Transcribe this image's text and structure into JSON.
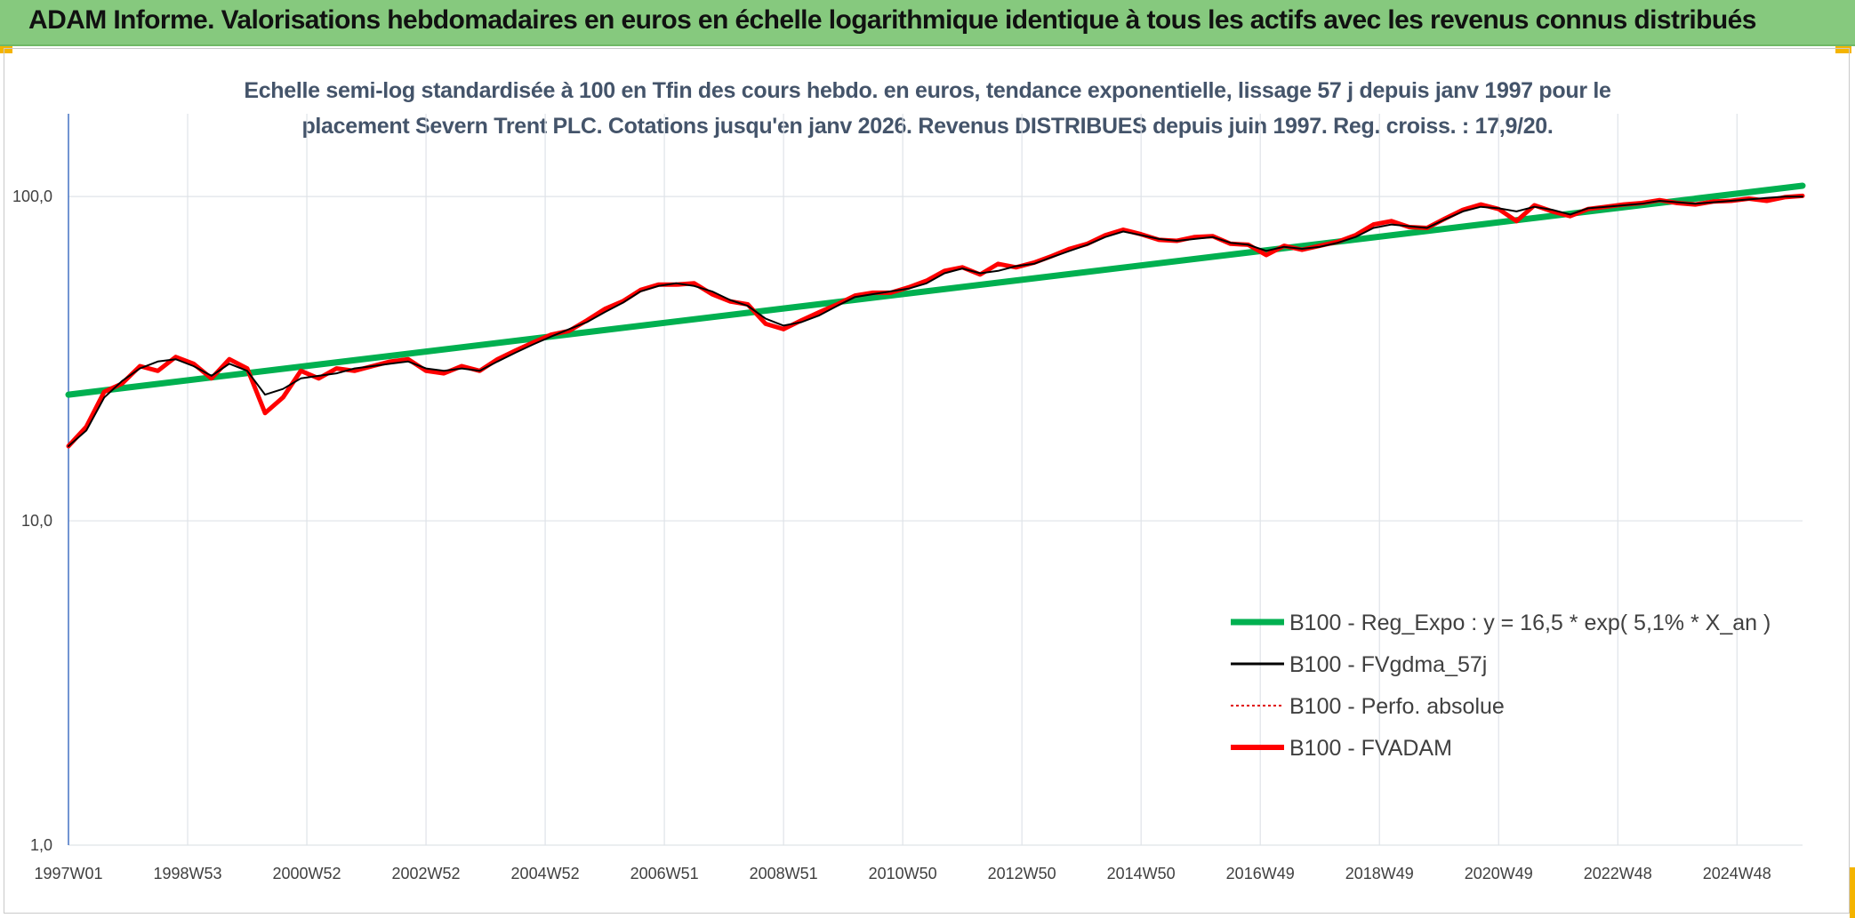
{
  "header": {
    "title": "ADAM Informe. Valorisations hebdomadaires en euros en échelle logarithmique identique à tous les actifs avec les revenus connus distribués"
  },
  "colors": {
    "header_bg": "#86c97e",
    "trend": "#00b050",
    "fvgdma": "#000000",
    "perfo": "#e00000",
    "fvadam": "#ff0000",
    "title_text": "#44546a"
  },
  "chart_data": {
    "type": "line",
    "title_line1": "Echelle semi-log standardisée à 100 en Tfin des cours hebdo. en euros, tendance exponentielle, lissage 57 j depuis janv 1997 pour le",
    "title_line2": "placement Severn Trent PLC. Cotations jusqu'en janv 2026. Revenus DISTRIBUES depuis juin 1997. Reg. croiss. : 17,9/20.",
    "y_scale": "log",
    "ylim": [
      1,
      180
    ],
    "xlim": [
      1997.0,
      2026.1
    ],
    "grid": true,
    "y_ticks": [
      {
        "value": 1,
        "label": "1,0"
      },
      {
        "value": 10,
        "label": "10,0"
      },
      {
        "value": 100,
        "label": "100,0"
      }
    ],
    "x_ticks": [
      {
        "value": 1997.0,
        "label": "1997W01"
      },
      {
        "value": 1999.0,
        "label": "1998W53"
      },
      {
        "value": 2001.0,
        "label": "2000W52"
      },
      {
        "value": 2003.0,
        "label": "2002W52"
      },
      {
        "value": 2005.0,
        "label": "2004W52"
      },
      {
        "value": 2007.0,
        "label": "2006W51"
      },
      {
        "value": 2009.0,
        "label": "2008W51"
      },
      {
        "value": 2011.0,
        "label": "2010W50"
      },
      {
        "value": 2013.0,
        "label": "2012W50"
      },
      {
        "value": 2015.0,
        "label": "2014W50"
      },
      {
        "value": 2017.0,
        "label": "2016W49"
      },
      {
        "value": 2019.0,
        "label": "2018W49"
      },
      {
        "value": 2021.0,
        "label": "2020W49"
      },
      {
        "value": 2023.0,
        "label": "2022W48"
      },
      {
        "value": 2025.0,
        "label": "2024W48"
      }
    ],
    "legend_position": "bottom-right",
    "series": [
      {
        "name": "B100 - Reg_Expo : y = 16,5 * exp( 5,1% *  X_an )",
        "key": "trend",
        "x": [
          1997.0,
          2026.1
        ],
        "values": [
          24.5,
          108.0
        ]
      },
      {
        "name": "B100 - FVgdma_57j",
        "key": "fvgdma",
        "x": [
          1997.0,
          1997.3,
          1997.6,
          1997.9,
          1998.2,
          1998.5,
          1998.8,
          1999.1,
          1999.4,
          1999.7,
          2000.0,
          2000.3,
          2000.6,
          2000.9,
          2001.2,
          2001.5,
          2001.8,
          2002.1,
          2002.4,
          2002.7,
          2003.0,
          2003.3,
          2003.6,
          2003.9,
          2004.2,
          2004.5,
          2004.8,
          2005.1,
          2005.4,
          2005.7,
          2006.0,
          2006.3,
          2006.6,
          2006.9,
          2007.2,
          2007.5,
          2007.8,
          2008.1,
          2008.4,
          2008.7,
          2009.0,
          2009.3,
          2009.6,
          2009.9,
          2010.2,
          2010.5,
          2010.8,
          2011.1,
          2011.4,
          2011.7,
          2012.0,
          2012.3,
          2012.6,
          2012.9,
          2013.2,
          2013.5,
          2013.8,
          2014.1,
          2014.4,
          2014.7,
          2015.0,
          2015.3,
          2015.6,
          2015.9,
          2016.2,
          2016.5,
          2016.8,
          2017.1,
          2017.4,
          2017.7,
          2018.0,
          2018.3,
          2018.6,
          2018.9,
          2019.2,
          2019.5,
          2019.8,
          2020.1,
          2020.4,
          2020.7,
          2021.0,
          2021.3,
          2021.6,
          2021.9,
          2022.2,
          2022.5,
          2022.8,
          2023.1,
          2023.4,
          2023.7,
          2024.0,
          2024.3,
          2024.6,
          2024.9,
          2025.2,
          2025.5,
          2025.8,
          2026.1
        ],
        "values": [
          17.0,
          19.0,
          24.0,
          27.0,
          29.5,
          31.0,
          31.5,
          30.0,
          28.0,
          30.5,
          29.0,
          24.5,
          25.5,
          27.5,
          28.0,
          28.5,
          29.5,
          30.0,
          30.5,
          31.0,
          29.5,
          29.0,
          29.5,
          29.0,
          31.0,
          33.0,
          35.0,
          37.0,
          39.0,
          41.0,
          44.0,
          47.0,
          51.0,
          53.0,
          54.0,
          53.0,
          51.0,
          48.0,
          46.0,
          42.0,
          40.0,
          41.0,
          43.0,
          46.0,
          49.0,
          50.0,
          51.0,
          52.0,
          54.0,
          58.0,
          60.0,
          58.0,
          59.0,
          61.0,
          62.0,
          65.0,
          68.0,
          71.0,
          75.0,
          78.0,
          76.0,
          74.0,
          73.0,
          74.0,
          75.0,
          72.0,
          71.0,
          68.0,
          70.0,
          69.0,
          70.0,
          72.0,
          75.0,
          80.0,
          82.0,
          81.0,
          80.0,
          85.0,
          90.0,
          93.0,
          92.0,
          90.0,
          93.0,
          91.0,
          88.0,
          92.0,
          93.0,
          94.0,
          95.0,
          97.0,
          96.0,
          95.0,
          96.0,
          97.0,
          98.0,
          99.0,
          100.0,
          100.0
        ]
      },
      {
        "name": "B100 - Perfo. absolue",
        "key": "perfo",
        "x": [],
        "values": []
      },
      {
        "name": "B100 - FVADAM",
        "key": "fvadam",
        "x": [
          1997.0,
          1997.3,
          1997.6,
          1997.9,
          1998.2,
          1998.5,
          1998.8,
          1999.1,
          1999.4,
          1999.7,
          2000.0,
          2000.3,
          2000.6,
          2000.9,
          2001.2,
          2001.5,
          2001.8,
          2002.1,
          2002.4,
          2002.7,
          2003.0,
          2003.3,
          2003.6,
          2003.9,
          2004.2,
          2004.5,
          2004.8,
          2005.1,
          2005.4,
          2005.7,
          2006.0,
          2006.3,
          2006.6,
          2006.9,
          2007.2,
          2007.5,
          2007.8,
          2008.1,
          2008.4,
          2008.7,
          2009.0,
          2009.3,
          2009.6,
          2009.9,
          2010.2,
          2010.5,
          2010.8,
          2011.1,
          2011.4,
          2011.7,
          2012.0,
          2012.3,
          2012.6,
          2012.9,
          2013.2,
          2013.5,
          2013.8,
          2014.1,
          2014.4,
          2014.7,
          2015.0,
          2015.3,
          2015.6,
          2015.9,
          2016.2,
          2016.5,
          2016.8,
          2017.1,
          2017.4,
          2017.7,
          2018.0,
          2018.3,
          2018.6,
          2018.9,
          2019.2,
          2019.5,
          2019.8,
          2020.1,
          2020.4,
          2020.7,
          2021.0,
          2021.3,
          2021.6,
          2021.9,
          2022.2,
          2022.5,
          2022.8,
          2023.1,
          2023.4,
          2023.7,
          2024.0,
          2024.3,
          2024.6,
          2024.9,
          2025.2,
          2025.5,
          2025.8,
          2026.1
        ],
        "values": [
          17.0,
          19.5,
          25.0,
          26.5,
          30.0,
          29.0,
          32.0,
          30.5,
          27.5,
          31.5,
          29.5,
          21.5,
          24.0,
          29.0,
          27.5,
          29.5,
          29.0,
          30.0,
          31.0,
          31.5,
          29.0,
          28.5,
          30.0,
          29.0,
          31.5,
          33.5,
          35.5,
          37.5,
          38.5,
          41.5,
          45.0,
          47.5,
          51.5,
          53.5,
          53.5,
          54.0,
          50.0,
          47.5,
          46.5,
          40.5,
          39.0,
          41.5,
          44.0,
          46.5,
          49.5,
          50.5,
          50.5,
          52.5,
          55.0,
          59.0,
          60.5,
          57.5,
          62.0,
          60.5,
          62.5,
          65.5,
          69.0,
          71.5,
          76.0,
          79.0,
          76.5,
          73.5,
          73.0,
          75.0,
          75.5,
          71.5,
          71.0,
          66.0,
          70.5,
          68.5,
          70.5,
          72.5,
          76.0,
          82.0,
          84.0,
          80.5,
          80.0,
          85.5,
          91.0,
          94.5,
          91.5,
          84.0,
          94.0,
          90.0,
          87.0,
          91.5,
          93.0,
          94.5,
          95.5,
          97.5,
          95.5,
          94.5,
          96.5,
          97.0,
          98.5,
          97.0,
          99.5,
          100.5
        ]
      }
    ]
  }
}
